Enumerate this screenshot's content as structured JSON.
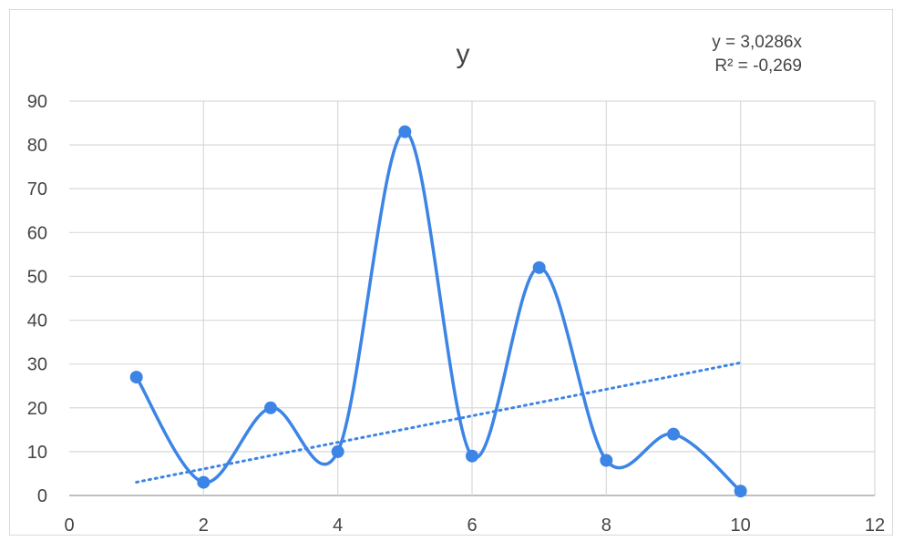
{
  "chart_data": {
    "type": "scatter",
    "title": "y",
    "x": [
      1,
      2,
      3,
      4,
      5,
      6,
      7,
      8,
      9,
      10
    ],
    "series": [
      {
        "values": [
          27,
          3,
          20,
          10,
          83,
          9,
          52,
          8,
          14,
          1
        ],
        "color": "#3c84e6",
        "smooth": true
      }
    ],
    "trendline": {
      "type": "linear",
      "slope": 3.0286,
      "intercept": 0,
      "x_range": [
        1,
        10
      ],
      "style": "dotted",
      "equation_label": "y = 3,0286x",
      "r2_label": "R² = -0,269"
    },
    "xlim": [
      0,
      12
    ],
    "ylim": [
      0,
      90
    ],
    "xticks": [
      0,
      2,
      4,
      6,
      8,
      10,
      12
    ],
    "yticks": [
      0,
      10,
      20,
      30,
      40,
      50,
      60,
      70,
      80,
      90
    ],
    "grid": true,
    "legend": "none"
  }
}
